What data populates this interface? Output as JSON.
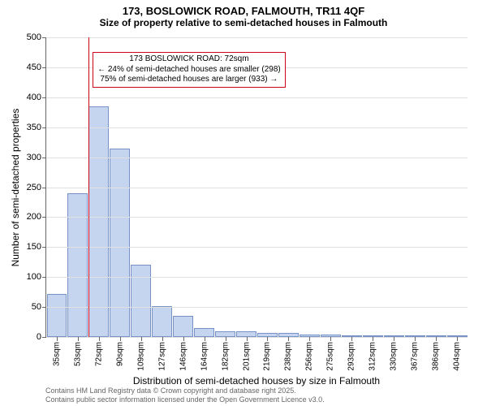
{
  "title": {
    "line1": "173, BOSLOWICK ROAD, FALMOUTH, TR11 4QF",
    "line2": "Size of property relative to semi-detached houses in Falmouth",
    "fontsize": 13,
    "color": "#000000"
  },
  "chart": {
    "type": "histogram",
    "background_color": "#ffffff",
    "grid_color": "#e0e0e0",
    "axis_color": "#666666",
    "ylim": [
      0,
      500
    ],
    "ytick_step": 50,
    "yticks": [
      0,
      50,
      100,
      150,
      200,
      250,
      300,
      350,
      400,
      450,
      500
    ],
    "ylabel": "Number of semi-detached properties",
    "xlabel": "Distribution of semi-detached houses by size in Falmouth",
    "label_fontsize": 12,
    "tick_fontsize": 11,
    "bar_fill": "#c5d4ef",
    "bar_border": "#7792c7",
    "bar_width": 1.0,
    "x_tick_labels": [
      "35sqm",
      "53sqm",
      "72sqm",
      "90sqm",
      "109sqm",
      "127sqm",
      "146sqm",
      "164sqm",
      "182sqm",
      "201sqm",
      "219sqm",
      "238sqm",
      "256sqm",
      "275sqm",
      "293sqm",
      "312sqm",
      "330sqm",
      "367sqm",
      "386sqm",
      "404sqm"
    ],
    "values": [
      72,
      240,
      385,
      315,
      120,
      52,
      35,
      15,
      10,
      10,
      7,
      7,
      4,
      4,
      2,
      2,
      2,
      2,
      2,
      2
    ],
    "reference_line": {
      "position_index": 2,
      "color": "#d0021b"
    },
    "callout": {
      "border_color": "#d0021b",
      "text_color": "#000000",
      "line1": "173 BOSLOWICK ROAD: 72sqm",
      "line2": "← 24% of semi-detached houses are smaller (298)",
      "line3": "75% of semi-detached houses are larger (933) →",
      "top_value": 475
    }
  },
  "footer": {
    "line1": "Contains HM Land Registry data © Crown copyright and database right 2025.",
    "line2": "Contains public sector information licensed under the Open Government Licence v3.0.",
    "color": "#666666",
    "fontsize": 9
  }
}
